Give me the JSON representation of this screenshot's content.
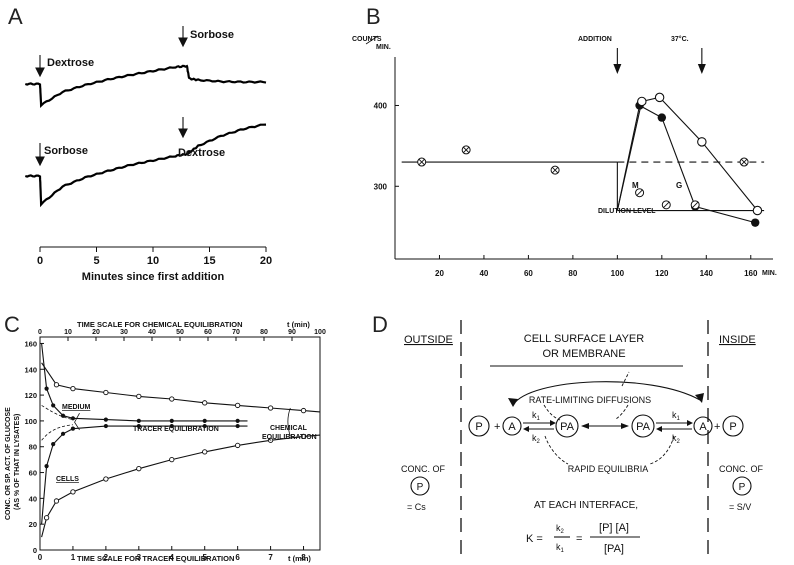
{
  "panels": {
    "A": {
      "letter": "A",
      "upper_trace_labels": {
        "first": "Dextrose",
        "second": "Sorbose"
      },
      "lower_trace_labels": {
        "first": "Sorbose",
        "second": "Dextrose"
      },
      "xlabel": "Minutes since first addition"
    },
    "B": {
      "letter": "B",
      "ylabel_top": "COUNTS",
      "ylabel_unit": "MIN.",
      "xlabel_unit": "MIN.",
      "annotation_addition": "ADDITION",
      "annotation_temp": "37°C.",
      "annotation_dilution": "DILUTION LEVEL",
      "series_m": "M",
      "series_g": "G"
    },
    "C": {
      "letter": "C",
      "top_axis_label": "TIME SCALE FOR CHEMICAL EQUILIBRATION",
      "top_axis_unit": "t (min)",
      "bottom_axis_label": "TIME SCALE FOR TRACER EQUILIBRATION",
      "bottom_axis_unit": "t (min)",
      "ylabel_line1": "CONC. OR SP. ACT. OF GLUCOSE",
      "ylabel_line2": "(AS % OF THAT IN LYSATES)",
      "label_medium": "MEDIUM",
      "label_cells": "CELLS",
      "label_tracer": "TRACER EQUILIBRATION",
      "label_chemical1": "CHEMICAL",
      "label_chemical2": "EQUILIBRATION"
    },
    "D": {
      "letter": "D",
      "outside": "OUTSIDE",
      "inside": "INSIDE",
      "membrane1": "CELL SURFACE LAYER",
      "membrane2": "OR MEMBRANE",
      "rate_limiting": "RATE-LIMITING DIFFUSIONS",
      "rapid": "RAPID EQUILIBRIA",
      "interface": "AT EACH INTERFACE,",
      "conc_of": "CONC. OF",
      "p": "P",
      "a": "A",
      "pa": "PA",
      "k1": "k",
      "k1_sub": "1",
      "k2": "k",
      "k2_sub": "2",
      "cs": "= Cs",
      "sv": "= S/V",
      "plus": "+",
      "eq_k": "K =",
      "eq_num": "[P]  [A]",
      "eq_den": "[PA]",
      "eq_eq": "="
    }
  },
  "chart_data": [
    {
      "id": "A",
      "type": "line",
      "xlabel": "Minutes since first addition",
      "xlim": [
        0,
        20
      ],
      "xticks": [
        0,
        5,
        10,
        15,
        20
      ],
      "series": [
        {
          "name": "Dextrose",
          "x": [
            -1.3,
            0,
            0.1,
            2,
            4,
            6,
            8,
            10,
            12,
            13,
            13.2,
            14,
            16,
            18,
            20
          ],
          "y": [
            0.52,
            0.52,
            0.1,
            0.36,
            0.5,
            0.61,
            0.7,
            0.78,
            0.86,
            0.88,
            0.63,
            0.6,
            0.57,
            0.56,
            0.56
          ]
        },
        {
          "name": "Sorbose",
          "x": [
            -1.3,
            0,
            0.1,
            2,
            4,
            6,
            8,
            10,
            12,
            13,
            13.2,
            14,
            16,
            18,
            20
          ],
          "y": [
            0.48,
            0.48,
            -0.08,
            0.27,
            0.45,
            0.58,
            0.7,
            0.79,
            0.88,
            0.92,
            0.95,
            1.08,
            1.28,
            1.42,
            1.52
          ]
        }
      ]
    },
    {
      "id": "B",
      "type": "scatter",
      "xlim": [
        0,
        170
      ],
      "ylim": [
        210,
        460
      ],
      "xticks": [
        20,
        40,
        60,
        80,
        100,
        120,
        140,
        160
      ],
      "yticks": [
        300,
        400
      ],
      "series": [
        {
          "name": "reference",
          "marker": "crossed",
          "x": [
            12,
            32,
            72,
            157
          ],
          "y": [
            330,
            345,
            320,
            330
          ]
        },
        {
          "name": "M",
          "marker": "filled",
          "x": [
            110,
            120,
            135,
            162
          ],
          "y": [
            400,
            385,
            275,
            255
          ]
        },
        {
          "name": "G",
          "marker": "open",
          "x": [
            111,
            119,
            138,
            163
          ],
          "y": [
            405,
            410,
            355,
            270
          ]
        },
        {
          "name": "medium",
          "marker": "slashed",
          "x": [
            110,
            122,
            135
          ],
          "y": [
            292,
            277,
            277
          ]
        }
      ],
      "lines": {
        "baseline": 330,
        "dilution_level": 270,
        "addition_x": 100,
        "temp_x": 138
      }
    },
    {
      "id": "C",
      "type": "line",
      "xlim_bottom": [
        0,
        8.5
      ],
      "xticks_bottom": [
        0,
        1,
        2,
        3,
        4,
        5,
        6,
        7,
        8
      ],
      "xlim_top": [
        0,
        100
      ],
      "xticks_top": [
        0,
        10,
        20,
        30,
        40,
        50,
        60,
        70,
        80,
        90,
        100
      ],
      "ylim": [
        0,
        165
      ],
      "yticks": [
        0,
        20,
        40,
        60,
        80,
        100,
        120,
        140,
        160
      ],
      "series": [
        {
          "name": "MEDIUM",
          "x": [
            0.05,
            0.5,
            1,
            2,
            3,
            4,
            5,
            6,
            7,
            8,
            8.5
          ],
          "y": [
            145,
            128,
            125,
            122,
            119,
            117,
            114,
            112,
            110,
            108,
            107
          ]
        },
        {
          "name": "CELLS",
          "x": [
            0.05,
            0.2,
            0.5,
            1,
            2,
            3,
            4,
            5,
            6,
            7,
            8,
            8.5
          ],
          "y": [
            10,
            25,
            38,
            45,
            55,
            63,
            70,
            76,
            81,
            85,
            88,
            89
          ]
        },
        {
          "name": "tracer-medium",
          "x": [
            0.05,
            0.2,
            0.4,
            0.7,
            1,
            2,
            3,
            4,
            5,
            6,
            6.3
          ],
          "y": [
            160,
            125,
            112,
            104,
            102,
            101,
            100,
            100,
            100,
            100,
            100
          ]
        },
        {
          "name": "tracer-cells",
          "x": [
            0.05,
            0.2,
            0.4,
            0.7,
            1,
            2,
            3,
            4,
            5,
            6,
            6.3
          ],
          "y": [
            20,
            65,
            82,
            90,
            94,
            96,
            96,
            96,
            96,
            96,
            96
          ]
        }
      ]
    }
  ]
}
